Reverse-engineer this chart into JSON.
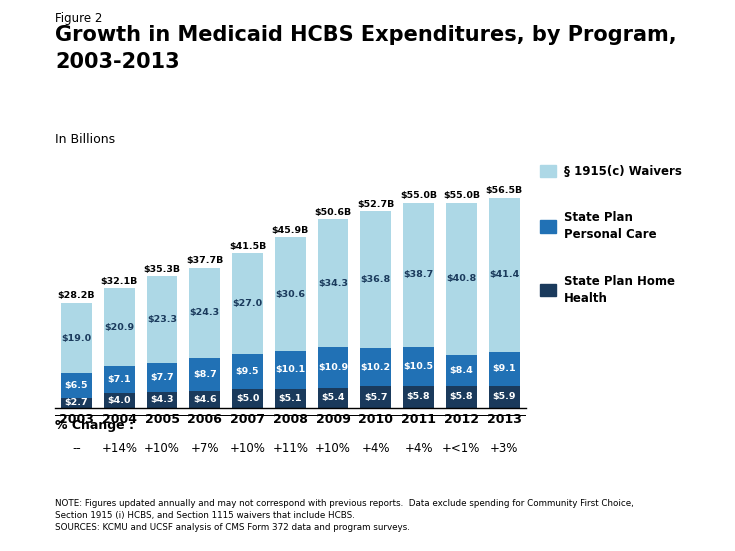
{
  "years": [
    "2003",
    "2004",
    "2005",
    "2006",
    "2007",
    "2008",
    "2009",
    "2010",
    "2011",
    "2012",
    "2013"
  ],
  "home_health": [
    2.7,
    4.0,
    4.3,
    4.6,
    5.0,
    5.1,
    5.4,
    5.7,
    5.8,
    5.8,
    5.9
  ],
  "personal_care": [
    6.5,
    7.1,
    7.7,
    8.7,
    9.5,
    10.1,
    10.9,
    10.2,
    10.5,
    8.4,
    9.1
  ],
  "waivers": [
    19.0,
    20.9,
    23.3,
    24.3,
    27.0,
    30.6,
    34.3,
    36.8,
    38.7,
    40.8,
    41.4
  ],
  "totals": [
    "$28.2B",
    "$32.1B",
    "$35.3B",
    "$37.7B",
    "$41.5B",
    "$45.9B",
    "$50.6B",
    "$52.7B",
    "$55.0B",
    "$55.0B",
    "$56.5B"
  ],
  "home_health_labels": [
    "$2.7",
    "$4.0",
    "$4.3",
    "$4.6",
    "$5.0",
    "$5.1",
    "$5.4",
    "$5.7",
    "$5.8",
    "$5.8",
    "$5.9"
  ],
  "personal_care_labels": [
    "$6.5",
    "$7.1",
    "$7.7",
    "$8.7",
    "$9.5",
    "$10.1",
    "$10.9",
    "$10.2",
    "$10.5",
    "$8.4",
    "$9.1"
  ],
  "waiver_labels": [
    "$19.0",
    "$20.9",
    "$23.3",
    "$24.3",
    "$27.0",
    "$30.6",
    "$34.3",
    "$36.8",
    "$38.7",
    "$40.8",
    "$41.4"
  ],
  "pct_change": [
    "--",
    "+14%",
    "+10%",
    "+7%",
    "+10%",
    "+11%",
    "+10%",
    "+4%",
    "+4%",
    "+<1%",
    "+3%"
  ],
  "color_waivers": "#add8e6",
  "color_personal_care": "#2171b5",
  "color_home_health": "#1a3a5c",
  "figure_label": "Figure 2",
  "title_line1": "Growth in Medicaid HCBS Expenditures, by Program,",
  "title_line2": "2003-2013",
  "ylabel": "In Billions",
  "legend_waivers": "§ 1915(c) Waivers",
  "legend_personal": "State Plan\nPersonal Care",
  "legend_home": "State Plan Home\nHealth",
  "note_line1": "NOTE: Figures updated annually and may not correspond with previous reports.  Data exclude spending for Community First Choice,",
  "note_line2": "Section 1915 (i) HCBS, and Section 1115 waivers that include HCBS.",
  "note_line3": "SOURCES: KCMU and UCSF analysis of CMS Form 372 data and program surveys."
}
